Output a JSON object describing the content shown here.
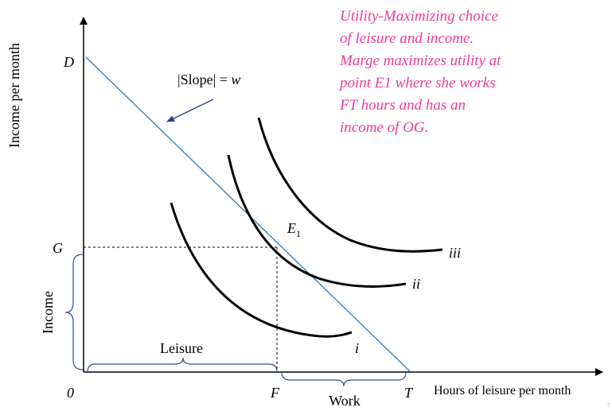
{
  "diagram": {
    "y_axis_label": "Income per month",
    "x_axis_label": "Hours of leisure per month",
    "points": {
      "D": "D",
      "G": "G",
      "origin": "0",
      "F": "F",
      "T": "T"
    },
    "equilibrium": {
      "letter": "E",
      "subscript": "1"
    },
    "slope_label": {
      "text": "|Slope| = ",
      "symbol": "w"
    },
    "note_lines": [
      "Utility-Maximizing choice",
      "of leisure and income.",
      "Marge maximizes utility at",
      "point E1 where she works",
      "FT hours and has an",
      "income of OG."
    ],
    "braces": {
      "income": "Income",
      "leisure": "Leisure",
      "work": "Work"
    },
    "curves": [
      "i",
      "ii",
      "iii"
    ],
    "page_number": "7"
  }
}
